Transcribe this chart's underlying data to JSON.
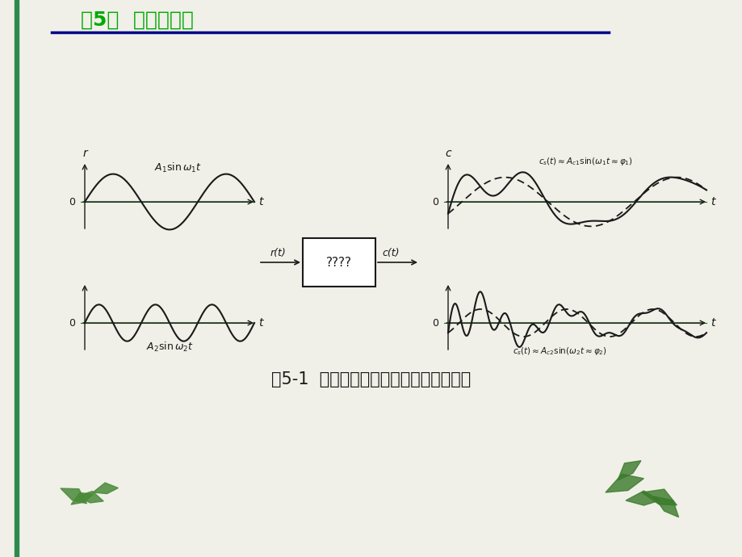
{
  "bg_color": "#f0f0e8",
  "header_title": "第5章  频域分析法",
  "header_color": "#00aa00",
  "header_line_color": "#00008b",
  "fig_caption": "图5-1  系统在正弦信号作用下的稳态响应",
  "box_label": "????",
  "input_arrow_label": "r(t)",
  "output_arrow_label": "c(t)",
  "left_top_label": "r",
  "left_top_curve_label": "A₁sinω₁t",
  "left_bot_curve_label": "A₂sinω₂t",
  "right_top_axis_label": "c",
  "right_top_curve_label": "cₛ(t)??Aⱼ₁sin(ω₁t?? φ₁)",
  "right_bot_curve_label": "cₛ(t)??Aⱼ₂sin(ω₂t?? φ₂)",
  "omega1": 1.0,
  "omega2": 3.0,
  "A1": 0.85,
  "A2": 0.6,
  "Ac1": 0.75,
  "Ac2": 0.45,
  "phi1": 0.5,
  "phi2": 0.8,
  "transient_decay": 3.0,
  "line_color": "#1a1a1a",
  "axis_color": "#555555",
  "dashed_color": "#333333",
  "green_line_color": "#008000"
}
